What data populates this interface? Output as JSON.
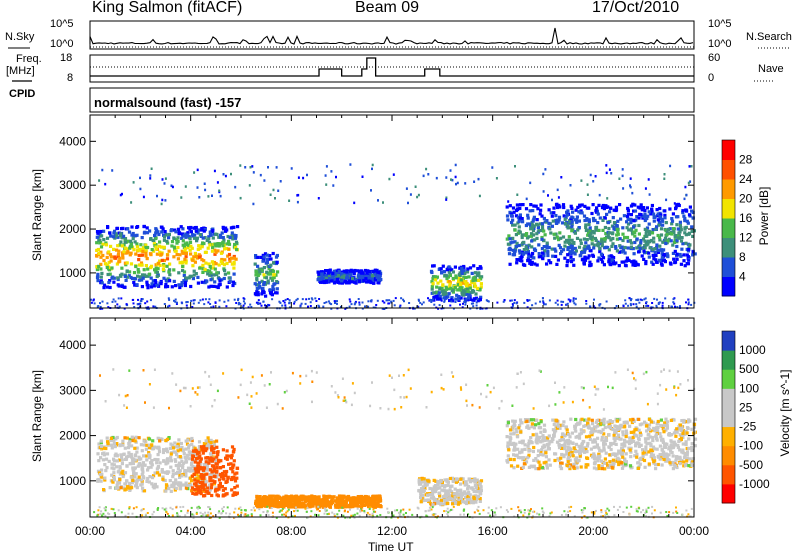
{
  "header": {
    "station": "King Salmon (fitACF)",
    "beam": "Beam 09",
    "date": "17/Oct/2010"
  },
  "left_labels": {
    "nsky": "N.Sky",
    "freq": "Freq.",
    "mhz": "[MHz]",
    "cpid": "CPID"
  },
  "right_labels": {
    "nsearch": "N.Search",
    "nave": "Nave"
  },
  "small_ticks": {
    "nsky_top": "10^5",
    "nsky_bot": "10^0",
    "nsearch_top": "10^5",
    "nsearch_bot": "10^0",
    "freq_top": "18",
    "freq_bot": "8",
    "nave_top": "60",
    "nave_bot": "0"
  },
  "cpid_text": "normalsound (fast) -157",
  "colors": {
    "power_scale": [
      "#0000ff",
      "#1f4fd8",
      "#3d8f7a",
      "#49b84a",
      "#f2e400",
      "#ff9a00",
      "#ff5000",
      "#ff0000"
    ],
    "velocity_scale": [
      "#ff0000",
      "#ff5500",
      "#ff8c00",
      "#ffb000",
      "#c8c8c8",
      "#c8c8c8",
      "#5fd040",
      "#2f9a50",
      "#2040c0"
    ]
  },
  "chart_data": [
    {
      "type": "heatmap",
      "name": "power",
      "ylabel": "Slant Range [km]",
      "yticks": [
        "4000",
        "3000",
        "2000",
        "1000"
      ],
      "xticks": [
        "00:00",
        "04:00",
        "08:00",
        "12:00",
        "16:00",
        "20:00",
        "00:00"
      ],
      "xlabel": "Time UT",
      "ylim": [
        200,
        4600
      ],
      "xlim_hours": [
        0,
        24
      ],
      "colorbar": {
        "label": "Power [dB]",
        "ticks": [
          "28",
          "24",
          "20",
          "16",
          "12",
          "8",
          "4"
        ]
      },
      "echo_regions": [
        {
          "t": [
            0.2,
            5.8
          ],
          "range": [
            700,
            2100
          ],
          "peak_db": 24
        },
        {
          "t": [
            6.5,
            7.4
          ],
          "range": [
            500,
            1500
          ],
          "peak_db": 14
        },
        {
          "t": [
            9.0,
            11.5
          ],
          "range": [
            800,
            1100
          ],
          "peak_db": 8
        },
        {
          "t": [
            13.5,
            15.5
          ],
          "range": [
            400,
            1200
          ],
          "peak_db": 20
        },
        {
          "t": [
            16.5,
            24.0
          ],
          "range": [
            1200,
            2600
          ],
          "peak_db": 12
        }
      ]
    },
    {
      "type": "heatmap",
      "name": "velocity",
      "ylabel": "Slant Range [km]",
      "yticks": [
        "4000",
        "3000",
        "2000",
        "1000"
      ],
      "xticks": [
        "00:00",
        "04:00",
        "08:00",
        "12:00",
        "16:00",
        "20:00",
        "00:00"
      ],
      "xlabel": "Time UT",
      "ylim": [
        200,
        4600
      ],
      "xlim_hours": [
        0,
        24
      ],
      "colorbar": {
        "label": "Velocity [m s^-1]",
        "ticks": [
          "1000",
          "500",
          "100",
          "25",
          "-25",
          "-100",
          "-500",
          "-1000"
        ]
      },
      "echo_regions": [
        {
          "t": [
            0.2,
            5.0
          ],
          "range": [
            800,
            2000
          ],
          "velocity": 0
        },
        {
          "t": [
            4.0,
            5.8
          ],
          "range": [
            700,
            1800
          ],
          "velocity": -400
        },
        {
          "t": [
            6.5,
            11.5
          ],
          "range": [
            450,
            700
          ],
          "velocity": -200
        },
        {
          "t": [
            13.0,
            15.5
          ],
          "range": [
            500,
            1100
          ],
          "velocity": 0
        },
        {
          "t": [
            16.5,
            24.0
          ],
          "range": [
            1300,
            2400
          ],
          "velocity": 0
        }
      ]
    }
  ]
}
